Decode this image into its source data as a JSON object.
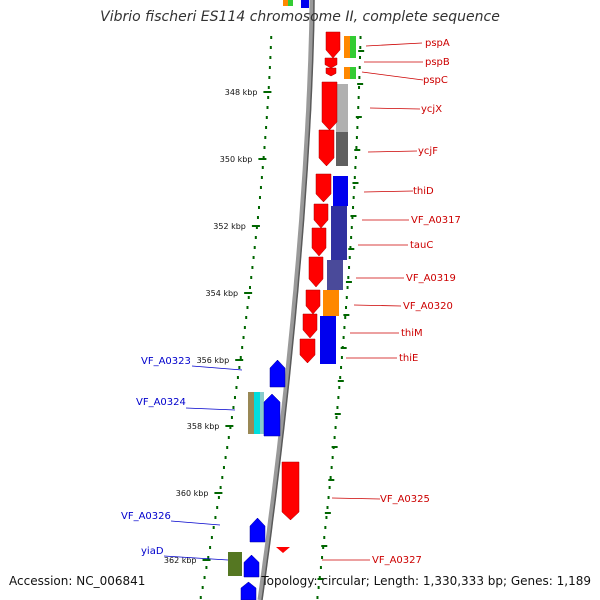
{
  "title": "Vibrio fischeri ES114 chromosome II, complete sequence",
  "accession": "Accession: NC_006841",
  "topology": "Topology: circular; Length: 1,330,333 bp; Genes: 1,189",
  "colors": {
    "forward_gene": "#0000ff",
    "reverse_gene": "#ff0000",
    "tick": "#006600",
    "label_forward": "#0000cc",
    "label_reverse": "#cc0000",
    "backbone": "#888888"
  },
  "ticks": [
    {
      "label": "348 kbp"
    },
    {
      "label": "350 kbp"
    },
    {
      "label": "352 kbp"
    },
    {
      "label": "354 kbp"
    },
    {
      "label": "356 kbp"
    },
    {
      "label": "358 kbp"
    },
    {
      "label": "360 kbp"
    },
    {
      "label": "362 kbp"
    }
  ],
  "reverse_gene_labels": [
    "pspA",
    "pspB",
    "pspC",
    "ycjX",
    "ycjF",
    "thiD",
    "VF_A0317",
    "tauC",
    "VF_A0319",
    "VF_A0320",
    "thiM",
    "thiE",
    "VF_A0325",
    "VF_A0327"
  ],
  "forward_gene_labels": [
    "VF_A0323",
    "VF_A0324",
    "VF_A0326",
    "yiaD"
  ]
}
